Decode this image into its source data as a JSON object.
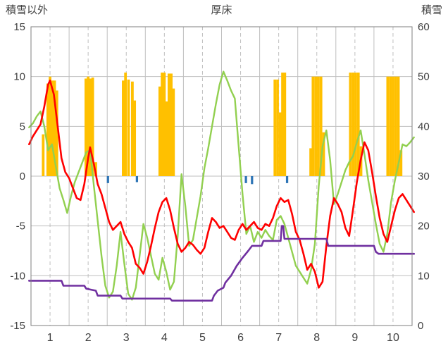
{
  "title": "厚床",
  "axis_titles": {
    "left": "積雪以外",
    "right": "積雪"
  },
  "colors": {
    "text": "#404040",
    "grid": "#BFBFBF",
    "border": "#7F7F7F",
    "bars_orange": "#FFC000",
    "bars_blue": "#2E75B6",
    "line_red": "#FF0000",
    "line_green": "#92D050",
    "line_purple": "#7030A0",
    "background": "#FFFFFF"
  },
  "chart_data": {
    "type": "bar",
    "subtype": "combo-bar-line",
    "title": "厚床",
    "xlabel": "",
    "ylabel_left": "積雪以外",
    "ylabel_right": "積雪",
    "legend": "none",
    "x_axis": {
      "min": 0.5,
      "max": 10.5,
      "tick_positions": [
        1,
        2,
        3,
        4,
        5,
        6,
        7,
        8,
        9,
        10
      ],
      "tick_labels": [
        "1",
        "2",
        "3",
        "4",
        "5",
        "6",
        "7",
        "8",
        "9",
        "10"
      ],
      "solid_gridlines": [
        1.5,
        2.5,
        3.5,
        4.5,
        5.5,
        6.5,
        7.5,
        8.5,
        9.5
      ],
      "dashed_gridlines": [
        1,
        2,
        3,
        4,
        5,
        6,
        7,
        8,
        9,
        10
      ]
    },
    "y_left": {
      "min": -15,
      "max": 15,
      "ticks": [
        15,
        10,
        5,
        0,
        -5,
        -10,
        -15
      ]
    },
    "y_right": {
      "min": 0,
      "max": 60,
      "ticks": [
        60,
        50,
        40,
        30,
        20,
        10,
        0
      ]
    },
    "series": [
      {
        "name": "orange-bars",
        "type": "bar",
        "axis": "left",
        "color": "#FFC000",
        "bar_width": 0.07,
        "points": [
          [
            0.82,
            4.2
          ],
          [
            0.94,
            9.3
          ],
          [
            1.0,
            10.0
          ],
          [
            1.06,
            9.6
          ],
          [
            1.12,
            9.6
          ],
          [
            1.18,
            8.6
          ],
          [
            1.94,
            9.8
          ],
          [
            2.0,
            10.0
          ],
          [
            2.06,
            9.8
          ],
          [
            2.12,
            9.9
          ],
          [
            2.2,
            1.4
          ],
          [
            2.92,
            9.6
          ],
          [
            2.98,
            10.4
          ],
          [
            3.06,
            9.7
          ],
          [
            3.16,
            9.5
          ],
          [
            3.22,
            7.6
          ],
          [
            3.88,
            9.0
          ],
          [
            3.94,
            10.4
          ],
          [
            4.0,
            10.4
          ],
          [
            4.06,
            7.5
          ],
          [
            4.12,
            10.3
          ],
          [
            4.18,
            10.3
          ],
          [
            4.24,
            8.8
          ],
          [
            6.9,
            9.7
          ],
          [
            6.97,
            9.7
          ],
          [
            7.04,
            6.4
          ],
          [
            7.1,
            10.4
          ],
          [
            7.16,
            10.4
          ],
          [
            7.84,
            2.8
          ],
          [
            7.9,
            10.0
          ],
          [
            7.97,
            10.0
          ],
          [
            8.04,
            10.0
          ],
          [
            8.11,
            10.0
          ],
          [
            8.18,
            4.4
          ],
          [
            8.88,
            10.4
          ],
          [
            8.95,
            10.4
          ],
          [
            9.02,
            10.4
          ],
          [
            9.09,
            10.4
          ],
          [
            9.16,
            3.0
          ],
          [
            9.86,
            10.0
          ],
          [
            9.93,
            10.0
          ],
          [
            10.0,
            10.0
          ],
          [
            10.07,
            10.0
          ],
          [
            10.14,
            10.0
          ],
          [
            10.21,
            2.6
          ]
        ]
      },
      {
        "name": "blue-marks",
        "type": "bar",
        "axis": "left",
        "color": "#2E75B6",
        "bar_width": 0.06,
        "points": [
          [
            2.52,
            -0.7
          ],
          [
            3.28,
            -0.6
          ],
          [
            6.14,
            -0.7
          ],
          [
            6.3,
            -0.8
          ],
          [
            7.22,
            -0.7
          ]
        ]
      },
      {
        "name": "green-line",
        "type": "line",
        "axis": "left",
        "color": "#92D050",
        "width": 2.4,
        "points": [
          [
            0.45,
            4.9
          ],
          [
            0.55,
            5.3
          ],
          [
            0.65,
            6.0
          ],
          [
            0.75,
            6.5
          ],
          [
            0.85,
            5.0
          ],
          [
            0.95,
            2.6
          ],
          [
            1.05,
            3.2
          ],
          [
            1.15,
            1.0
          ],
          [
            1.25,
            -1.2
          ],
          [
            1.35,
            -2.4
          ],
          [
            1.45,
            -3.7
          ],
          [
            1.55,
            -2.0
          ],
          [
            1.65,
            -0.6
          ],
          [
            1.75,
            0.4
          ],
          [
            1.85,
            1.4
          ],
          [
            1.95,
            2.4
          ],
          [
            2.05,
            2.6
          ],
          [
            2.15,
            -1.0
          ],
          [
            2.25,
            -4.5
          ],
          [
            2.35,
            -8.0
          ],
          [
            2.45,
            -11.0
          ],
          [
            2.55,
            -12.2
          ],
          [
            2.65,
            -11.6
          ],
          [
            2.75,
            -9.0
          ],
          [
            2.85,
            -5.6
          ],
          [
            2.95,
            -8.8
          ],
          [
            3.05,
            -11.8
          ],
          [
            3.15,
            -12.4
          ],
          [
            3.25,
            -11.2
          ],
          [
            3.35,
            -8.0
          ],
          [
            3.45,
            -4.8
          ],
          [
            3.55,
            -6.2
          ],
          [
            3.65,
            -8.0
          ],
          [
            3.75,
            -9.8
          ],
          [
            3.85,
            -10.4
          ],
          [
            3.95,
            -8.2
          ],
          [
            4.05,
            -9.6
          ],
          [
            4.15,
            -11.4
          ],
          [
            4.25,
            -10.6
          ],
          [
            4.35,
            -6.0
          ],
          [
            4.45,
            0.2
          ],
          [
            4.55,
            -3.0
          ],
          [
            4.65,
            -7.0
          ],
          [
            4.75,
            -6.4
          ],
          [
            4.85,
            -4.2
          ],
          [
            4.95,
            -2.0
          ],
          [
            5.05,
            0.8
          ],
          [
            5.15,
            2.8
          ],
          [
            5.25,
            5.0
          ],
          [
            5.35,
            7.2
          ],
          [
            5.45,
            9.2
          ],
          [
            5.55,
            10.5
          ],
          [
            5.65,
            9.6
          ],
          [
            5.75,
            8.6
          ],
          [
            5.85,
            7.8
          ],
          [
            5.95,
            3.0
          ],
          [
            6.05,
            -1.8
          ],
          [
            6.15,
            -5.8
          ],
          [
            6.25,
            -5.0
          ],
          [
            6.35,
            -6.6
          ],
          [
            6.45,
            -5.6
          ],
          [
            6.55,
            -6.2
          ],
          [
            6.65,
            -5.4
          ],
          [
            6.75,
            -6.0
          ],
          [
            6.85,
            -6.4
          ],
          [
            6.95,
            -4.4
          ],
          [
            7.05,
            -4.0
          ],
          [
            7.15,
            -4.8
          ],
          [
            7.25,
            -6.2
          ],
          [
            7.35,
            -7.6
          ],
          [
            7.45,
            -9.0
          ],
          [
            7.55,
            -9.6
          ],
          [
            7.65,
            -10.2
          ],
          [
            7.75,
            -10.8
          ],
          [
            7.85,
            -9.4
          ],
          [
            7.95,
            -6.8
          ],
          [
            8.05,
            -1.0
          ],
          [
            8.15,
            3.0
          ],
          [
            8.25,
            4.6
          ],
          [
            8.35,
            1.6
          ],
          [
            8.45,
            -2.8
          ],
          [
            8.55,
            -1.8
          ],
          [
            8.65,
            -0.6
          ],
          [
            8.75,
            0.6
          ],
          [
            8.85,
            1.4
          ],
          [
            8.95,
            2.0
          ],
          [
            9.05,
            3.4
          ],
          [
            9.15,
            4.6
          ],
          [
            9.25,
            2.2
          ],
          [
            9.35,
            -0.4
          ],
          [
            9.45,
            -2.6
          ],
          [
            9.55,
            -4.8
          ],
          [
            9.65,
            -6.8
          ],
          [
            9.75,
            -7.6
          ],
          [
            9.85,
            -5.8
          ],
          [
            9.95,
            -2.6
          ],
          [
            10.05,
            -0.4
          ],
          [
            10.15,
            1.4
          ],
          [
            10.25,
            3.2
          ],
          [
            10.35,
            3.0
          ],
          [
            10.45,
            3.4
          ],
          [
            10.55,
            3.9
          ]
        ]
      },
      {
        "name": "red-line",
        "type": "line",
        "axis": "left",
        "color": "#FF0000",
        "width": 2.6,
        "points": [
          [
            0.45,
            3.2
          ],
          [
            0.55,
            4.0
          ],
          [
            0.65,
            4.6
          ],
          [
            0.75,
            5.2
          ],
          [
            0.85,
            7.0
          ],
          [
            0.95,
            9.2
          ],
          [
            1.0,
            9.6
          ],
          [
            1.1,
            8.2
          ],
          [
            1.2,
            5.0
          ],
          [
            1.3,
            1.8
          ],
          [
            1.4,
            0.4
          ],
          [
            1.5,
            -0.2
          ],
          [
            1.6,
            -1.2
          ],
          [
            1.7,
            -2.2
          ],
          [
            1.8,
            -2.4
          ],
          [
            1.9,
            -0.8
          ],
          [
            2.0,
            1.8
          ],
          [
            2.05,
            2.9
          ],
          [
            2.15,
            1.2
          ],
          [
            2.25,
            -0.8
          ],
          [
            2.35,
            -1.8
          ],
          [
            2.45,
            -3.2
          ],
          [
            2.55,
            -4.6
          ],
          [
            2.65,
            -5.4
          ],
          [
            2.75,
            -5.0
          ],
          [
            2.85,
            -4.6
          ],
          [
            2.95,
            -5.8
          ],
          [
            3.05,
            -6.6
          ],
          [
            3.15,
            -7.2
          ],
          [
            3.25,
            -8.8
          ],
          [
            3.35,
            -9.2
          ],
          [
            3.45,
            -9.8
          ],
          [
            3.55,
            -8.6
          ],
          [
            3.65,
            -7.0
          ],
          [
            3.75,
            -5.2
          ],
          [
            3.85,
            -3.6
          ],
          [
            3.95,
            -2.6
          ],
          [
            4.05,
            -2.2
          ],
          [
            4.15,
            -3.4
          ],
          [
            4.25,
            -5.2
          ],
          [
            4.35,
            -6.8
          ],
          [
            4.45,
            -7.6
          ],
          [
            4.55,
            -7.2
          ],
          [
            4.65,
            -6.6
          ],
          [
            4.75,
            -6.9
          ],
          [
            4.85,
            -7.4
          ],
          [
            4.95,
            -7.8
          ],
          [
            5.05,
            -7.2
          ],
          [
            5.15,
            -5.6
          ],
          [
            5.25,
            -4.2
          ],
          [
            5.35,
            -4.6
          ],
          [
            5.45,
            -5.2
          ],
          [
            5.55,
            -5.0
          ],
          [
            5.65,
            -5.6
          ],
          [
            5.75,
            -6.2
          ],
          [
            5.85,
            -6.4
          ],
          [
            5.95,
            -5.4
          ],
          [
            6.05,
            -4.8
          ],
          [
            6.15,
            -5.4
          ],
          [
            6.25,
            -5.0
          ],
          [
            6.35,
            -4.6
          ],
          [
            6.45,
            -5.2
          ],
          [
            6.55,
            -5.4
          ],
          [
            6.65,
            -4.8
          ],
          [
            6.75,
            -5.0
          ],
          [
            6.85,
            -4.2
          ],
          [
            6.95,
            -3.0
          ],
          [
            7.05,
            -2.2
          ],
          [
            7.15,
            -2.6
          ],
          [
            7.25,
            -2.4
          ],
          [
            7.35,
            -3.8
          ],
          [
            7.45,
            -5.6
          ],
          [
            7.55,
            -6.4
          ],
          [
            7.65,
            -7.8
          ],
          [
            7.75,
            -9.4
          ],
          [
            7.85,
            -8.8
          ],
          [
            7.95,
            -9.6
          ],
          [
            8.05,
            -11.2
          ],
          [
            8.15,
            -10.6
          ],
          [
            8.25,
            -7.0
          ],
          [
            8.35,
            -4.0
          ],
          [
            8.45,
            -2.2
          ],
          [
            8.55,
            -2.8
          ],
          [
            8.65,
            -3.6
          ],
          [
            8.75,
            -5.2
          ],
          [
            8.85,
            -6.0
          ],
          [
            8.95,
            -3.4
          ],
          [
            9.05,
            -0.6
          ],
          [
            9.15,
            1.6
          ],
          [
            9.25,
            3.4
          ],
          [
            9.35,
            2.6
          ],
          [
            9.45,
            0.4
          ],
          [
            9.55,
            -2.0
          ],
          [
            9.65,
            -4.2
          ],
          [
            9.75,
            -5.8
          ],
          [
            9.85,
            -6.6
          ],
          [
            9.95,
            -5.0
          ],
          [
            10.05,
            -3.4
          ],
          [
            10.15,
            -2.2
          ],
          [
            10.25,
            -1.8
          ],
          [
            10.35,
            -2.4
          ],
          [
            10.45,
            -3.0
          ],
          [
            10.55,
            -3.6
          ]
        ]
      },
      {
        "name": "snow-depth-line",
        "type": "line",
        "axis": "right",
        "color": "#7030A0",
        "width": 2.6,
        "points": [
          [
            0.45,
            9
          ],
          [
            1.3,
            9
          ],
          [
            1.35,
            8
          ],
          [
            1.9,
            8
          ],
          [
            1.95,
            7.4
          ],
          [
            2.2,
            7
          ],
          [
            2.25,
            6
          ],
          [
            2.85,
            6
          ],
          [
            2.9,
            5.4
          ],
          [
            4.15,
            5.4
          ],
          [
            4.2,
            5
          ],
          [
            5.25,
            5
          ],
          [
            5.3,
            6
          ],
          [
            5.4,
            7
          ],
          [
            5.55,
            7.6
          ],
          [
            5.6,
            8.6
          ],
          [
            5.75,
            10
          ],
          [
            5.9,
            12
          ],
          [
            6.05,
            13.6
          ],
          [
            6.2,
            15
          ],
          [
            6.3,
            16
          ],
          [
            6.55,
            16
          ],
          [
            6.6,
            17
          ],
          [
            7.05,
            17
          ],
          [
            7.08,
            20
          ],
          [
            7.12,
            20
          ],
          [
            7.15,
            17.4
          ],
          [
            8.25,
            17.4
          ],
          [
            8.3,
            16
          ],
          [
            9.5,
            16
          ],
          [
            9.55,
            14.8
          ],
          [
            9.62,
            14.4
          ],
          [
            10.55,
            14.4
          ]
        ]
      }
    ]
  }
}
